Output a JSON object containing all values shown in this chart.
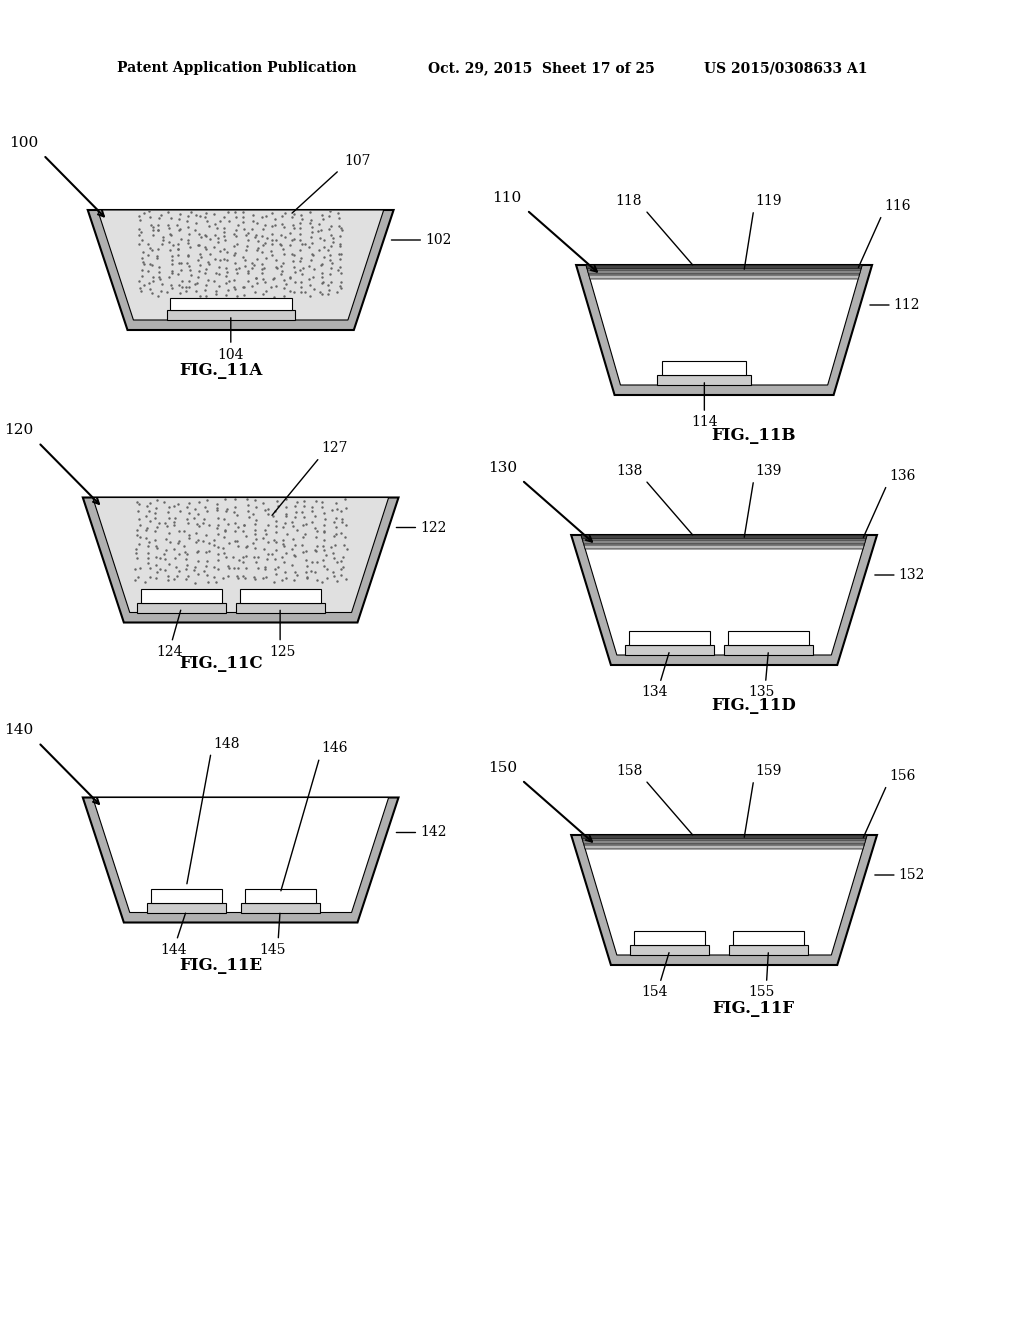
{
  "bg_color": "#ffffff",
  "header_left": "Patent Application Publication",
  "header_mid": "Oct. 29, 2015  Sheet 17 of 25",
  "header_right": "US 2015/0308633 A1",
  "figures": [
    {
      "label": "FIG._11A",
      "ref": "11A"
    },
    {
      "label": "FIG._11B",
      "ref": "11B"
    },
    {
      "label": "FIG._11C",
      "ref": "11C"
    },
    {
      "label": "FIG._11D",
      "ref": "11D"
    },
    {
      "label": "FIG._11E",
      "ref": "11E"
    },
    {
      "label": "FIG._11F",
      "ref": "11F"
    }
  ]
}
